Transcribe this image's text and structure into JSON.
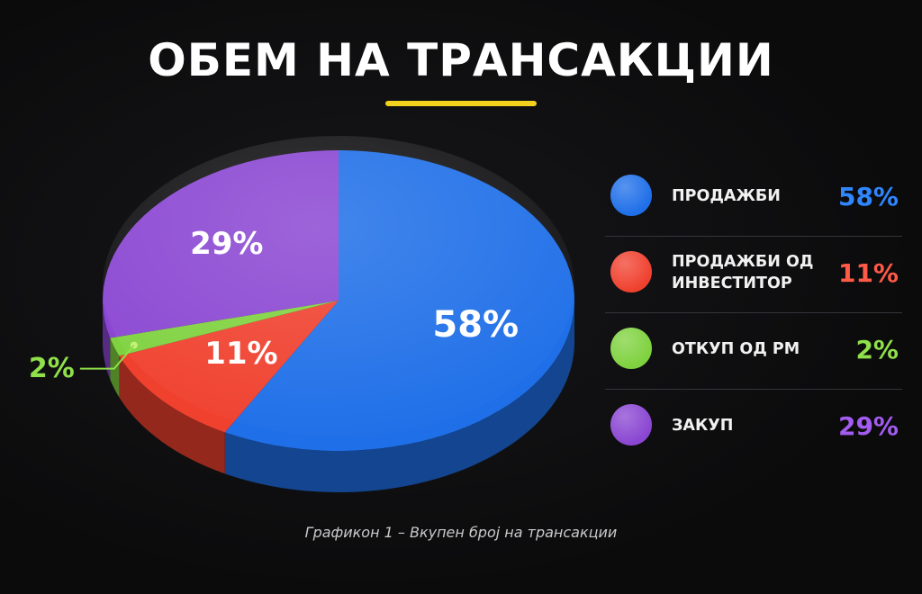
{
  "title": "ОБЕМ НА ТРАНСАКЦИИ",
  "caption": "Графикон 1 – Вкупен број на трансакции",
  "colors": {
    "accent_underline": "#f2d21c",
    "background": "#0b0b0c"
  },
  "chart_data": {
    "type": "pie",
    "title": "ОБЕМ НА ТРАНСАКЦИИ",
    "style": "3d",
    "legend_position": "right",
    "slices": [
      {
        "label": "ПРОДАЖБИ",
        "value": 58,
        "value_label": "58%",
        "color": "#1f6fe8",
        "text_color": "#2f86ff"
      },
      {
        "label": "ПРОДАЖБИ ОД\nИНВЕСТИТОР",
        "value": 11,
        "value_label": "11%",
        "color": "#f0412f",
        "text_color": "#ff5a48"
      },
      {
        "label": "ОТКУП ОД РМ",
        "value": 2,
        "value_label": "2%",
        "color": "#7fd23f",
        "text_color": "#8fe04a"
      },
      {
        "label": "ЗАКУП",
        "value": 29,
        "value_label": "29%",
        "color": "#8a46d2",
        "text_color": "#a25cf0"
      }
    ]
  }
}
